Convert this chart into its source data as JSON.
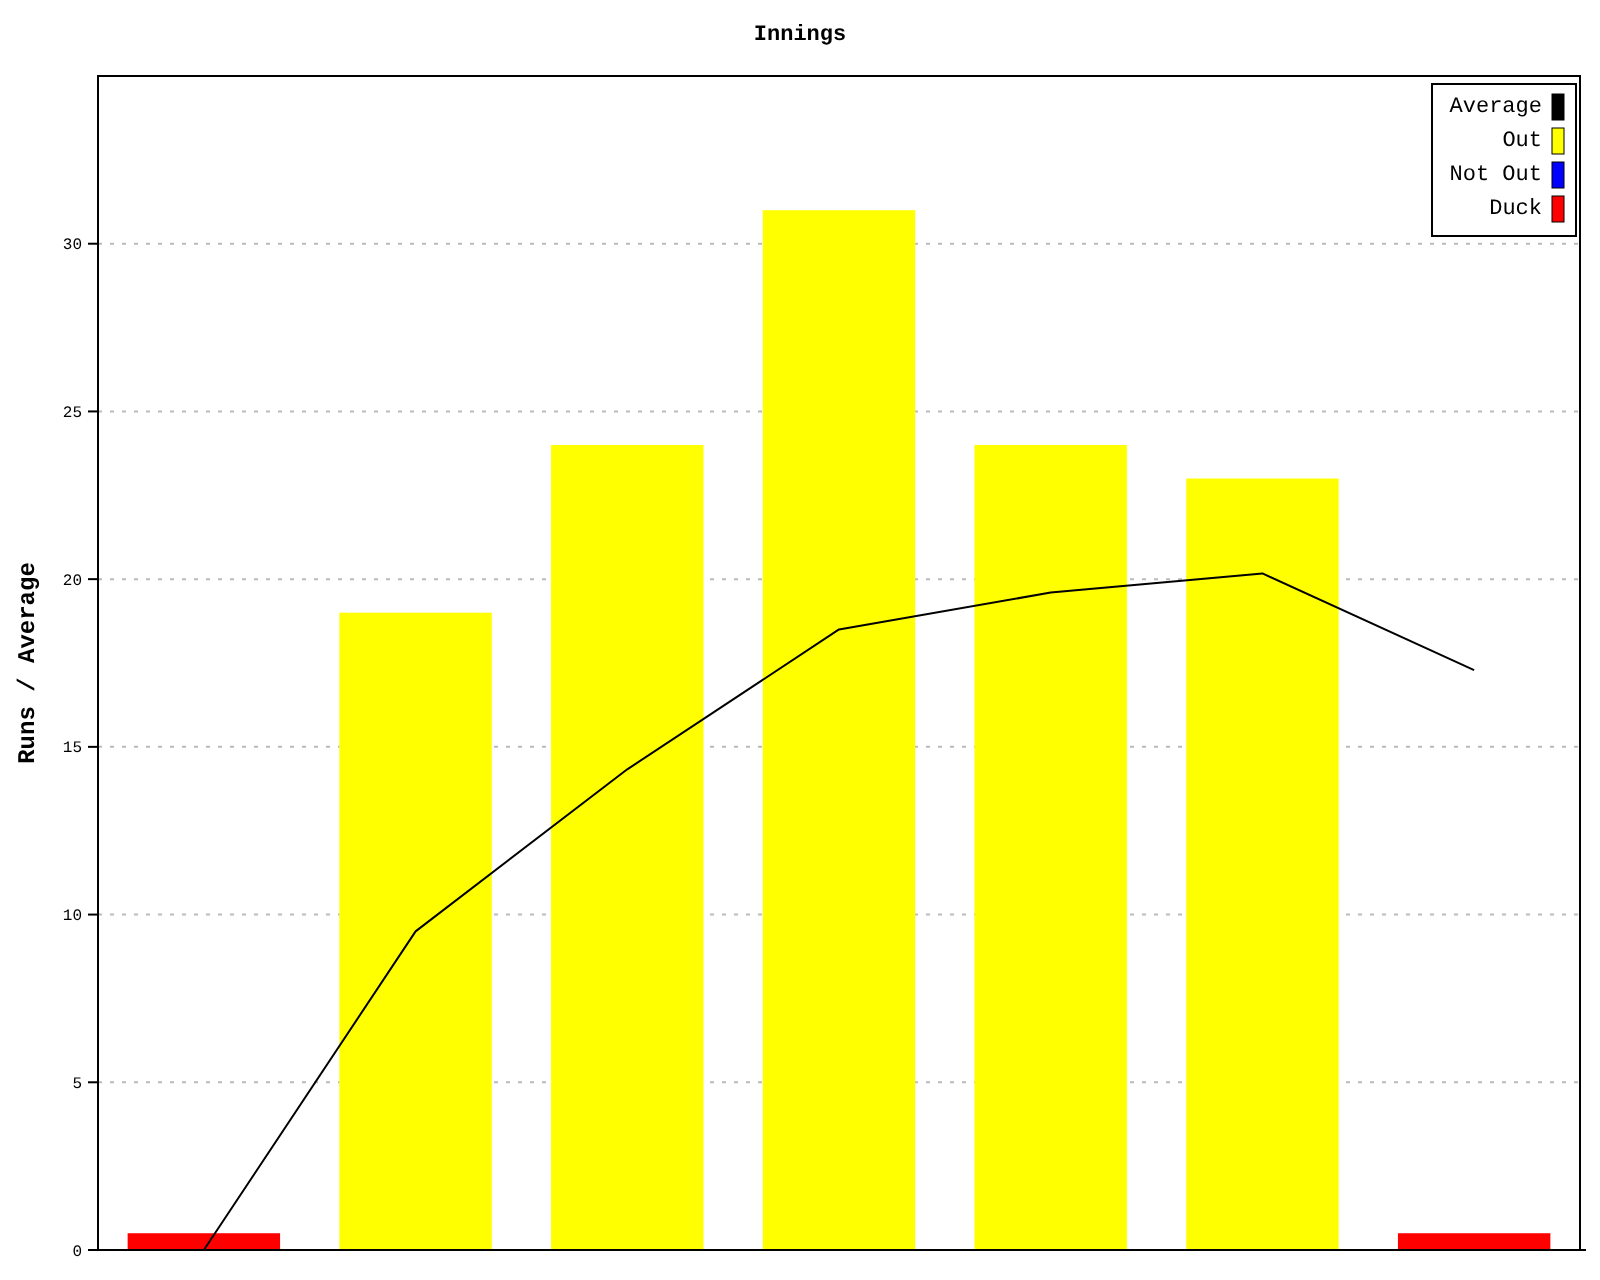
{
  "chart_data": {
    "type": "bar",
    "title": "Innings",
    "ylabel": "Runs / Average",
    "categories": [
      null,
      null,
      null,
      null,
      null,
      null,
      null
    ],
    "series": [
      {
        "name": "Average",
        "type": "line",
        "color": "#000000",
        "values": [
          0,
          9.5,
          14.33,
          18.5,
          19.6,
          20.17,
          17.29
        ]
      },
      {
        "name": "Out",
        "color": "#ffff00",
        "values": [
          null,
          19,
          24,
          31,
          24,
          23,
          null
        ]
      },
      {
        "name": "Not Out",
        "color": "#0000ff",
        "values": [
          null,
          null,
          null,
          null,
          null,
          null,
          null
        ]
      },
      {
        "name": "Duck",
        "color": "#ff0000",
        "values": [
          0.5,
          null,
          null,
          null,
          null,
          null,
          0.5
        ]
      }
    ],
    "ylim": [
      0,
      35
    ],
    "yticks": [
      0,
      5,
      10,
      15,
      20,
      25,
      30
    ],
    "grid": "y",
    "legend": "top right",
    "tick_labels": "y",
    "marker": "none"
  }
}
